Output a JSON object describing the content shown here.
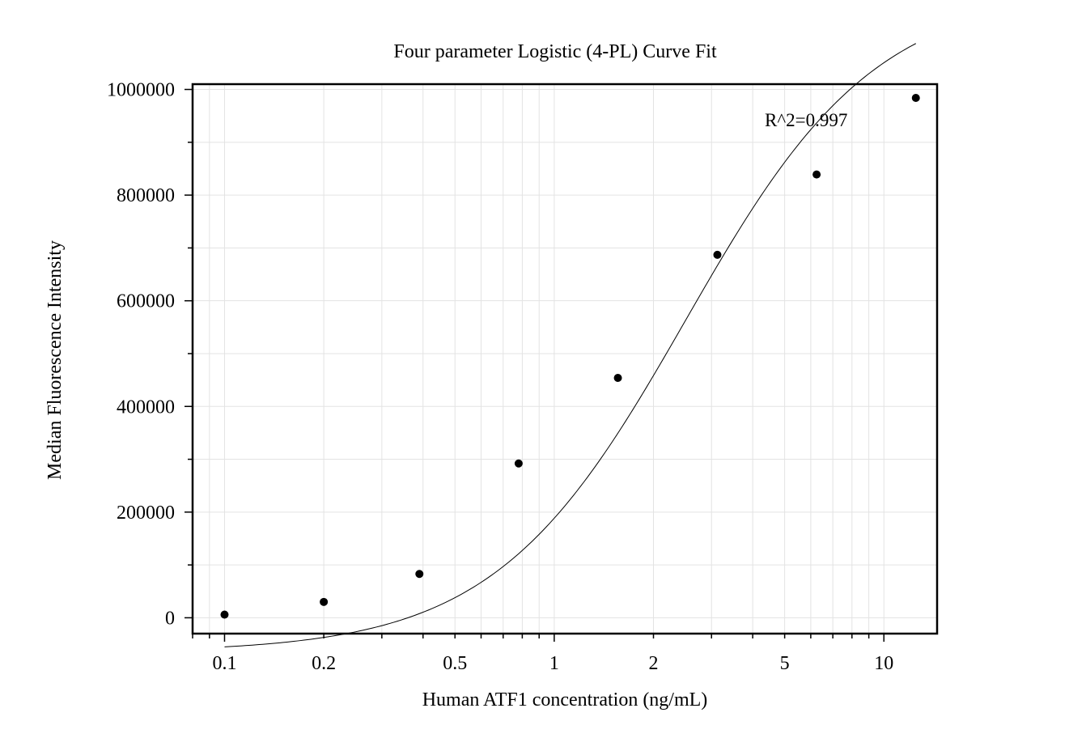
{
  "chart_data": {
    "type": "scatter",
    "title": "Four parameter Logistic (4-PL) Curve Fit",
    "xlabel": "Human ATF1 concentration (ng/mL)",
    "ylabel": "Median Fluorescence Intensity",
    "x_scale": "log",
    "xlim": [
      0.08,
      14.5
    ],
    "ylim": [
      -30000,
      1010000
    ],
    "x_ticks": [
      {
        "value": 0.1,
        "label": "0.1"
      },
      {
        "value": 0.2,
        "label": "0.2"
      },
      {
        "value": 0.5,
        "label": "0.5"
      },
      {
        "value": 1,
        "label": "1"
      },
      {
        "value": 2,
        "label": "2"
      },
      {
        "value": 5,
        "label": "5"
      },
      {
        "value": 10,
        "label": "10"
      }
    ],
    "y_ticks": [
      {
        "value": 0,
        "label": "0"
      },
      {
        "value": 200000,
        "label": "200000"
      },
      {
        "value": 400000,
        "label": "400000"
      },
      {
        "value": 600000,
        "label": "600000"
      },
      {
        "value": 800000,
        "label": "800000"
      },
      {
        "value": 1000000,
        "label": "1000000"
      }
    ],
    "points": [
      {
        "x": 0.1,
        "y": 6000
      },
      {
        "x": 0.2,
        "y": 30000
      },
      {
        "x": 0.39,
        "y": 83000
      },
      {
        "x": 0.78,
        "y": 292000
      },
      {
        "x": 1.56,
        "y": 454000
      },
      {
        "x": 3.125,
        "y": 687000
      },
      {
        "x": 6.25,
        "y": 839000
      },
      {
        "x": 12.5,
        "y": 984000
      }
    ],
    "fit": {
      "model": "4PL",
      "A": -65000,
      "B": 1.5,
      "C": 2.5,
      "D": 1190000
    },
    "annotation": "R^2=0.997",
    "grid": true,
    "colors": {
      "points": "#000000",
      "curve": "#000000",
      "grid": "#e3e3e3"
    }
  }
}
